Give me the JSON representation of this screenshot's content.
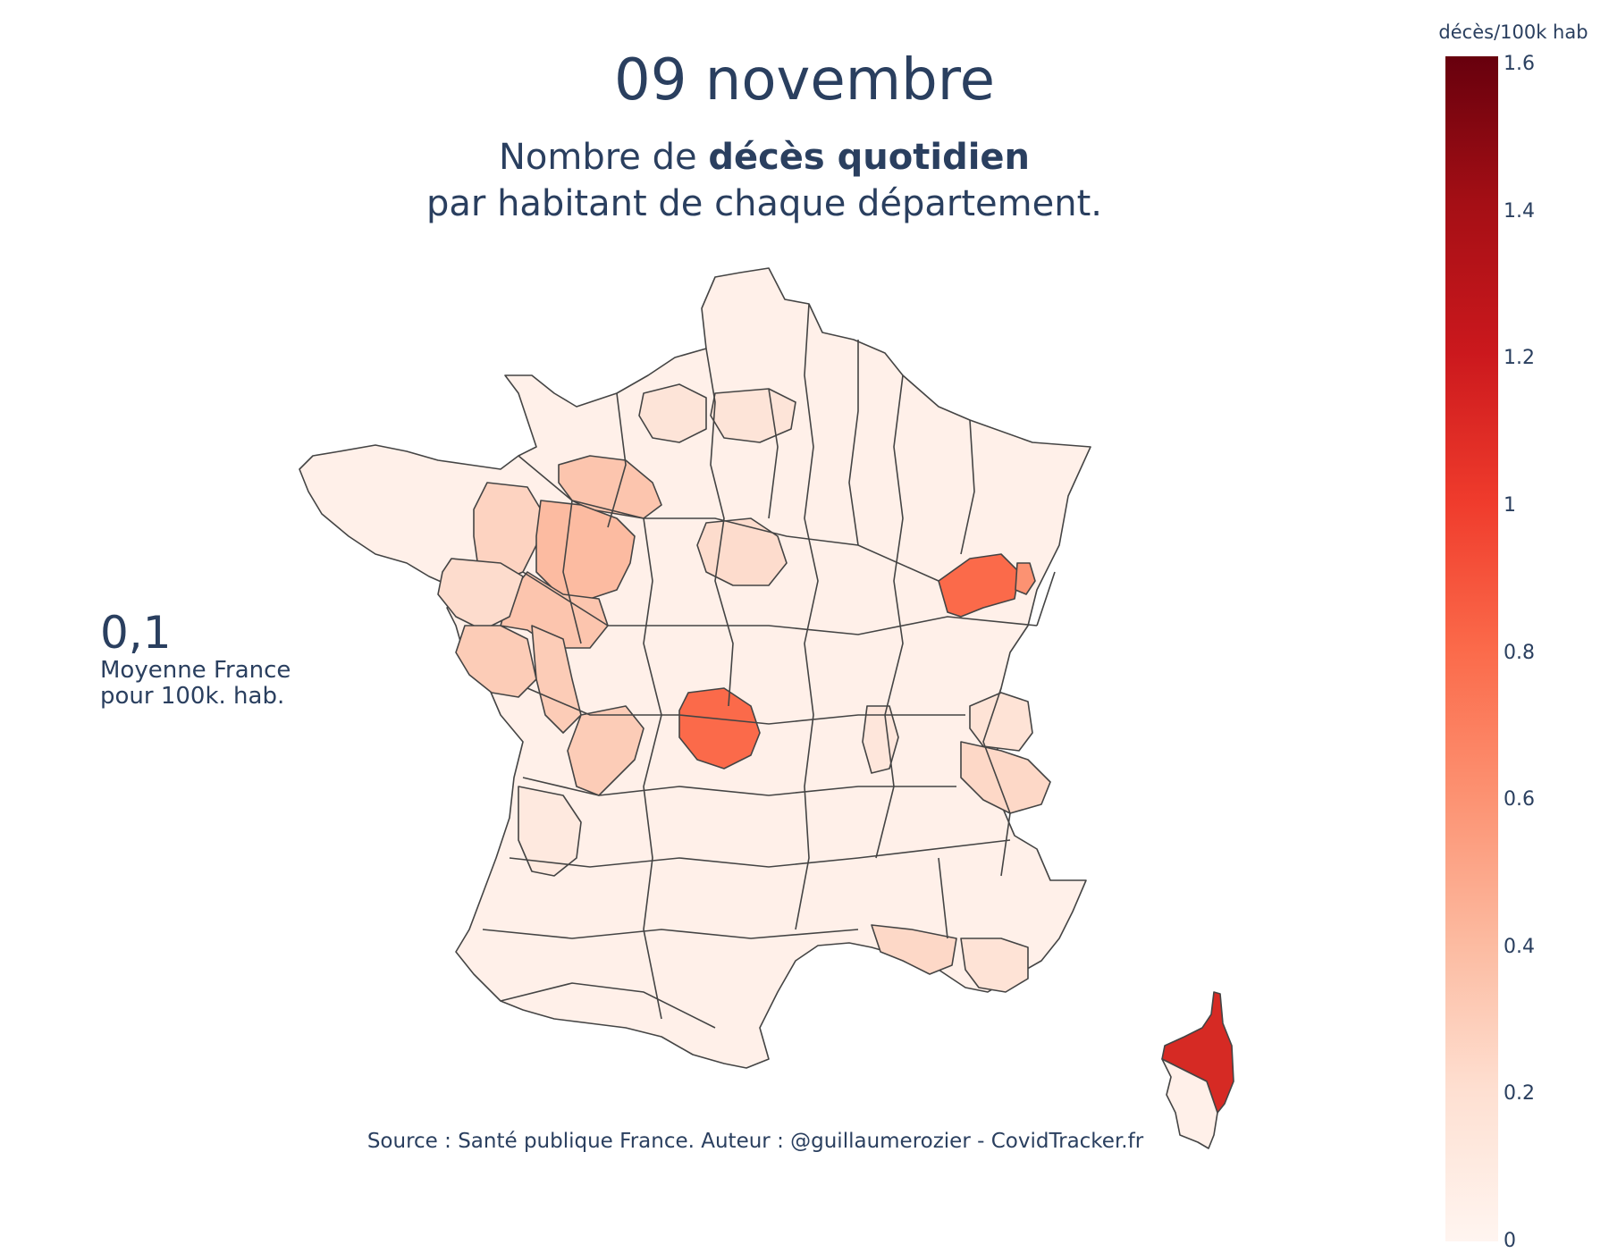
{
  "title": "09 novembre",
  "subtitle": {
    "prefix": "Nombre de ",
    "bold": "décès quotidien",
    "line2": "par habitant de chaque département."
  },
  "average": {
    "value": "0,1",
    "label_line1": "Moyenne France",
    "label_line2": "pour 100k. hab."
  },
  "source": "Source : Santé publique France. Auteur : @guillaumerozier - CovidTracker.fr",
  "colorbar": {
    "title": "décès/100k hab",
    "min": 0,
    "max": 1.6,
    "ticks": [
      "0",
      "0.2",
      "0.4",
      "0.6",
      "0.8",
      "1",
      "1.2",
      "1.4",
      "1.6"
    ],
    "colorscale": [
      "#fff5f0",
      "#fee0d2",
      "#fcbba1",
      "#fc9272",
      "#fb6a4a",
      "#ef3b2c",
      "#cb181d",
      "#a50f15",
      "#67000d"
    ]
  },
  "map": {
    "type": "choropleth",
    "region": "France – départements",
    "border_color": "#444444",
    "highlighted_departments": [
      {
        "location": "Doubs",
        "value": 0.85
      },
      {
        "location": "Territoire de Belfort",
        "value": 0.6
      },
      {
        "location": "Indre",
        "value": 0.85
      },
      {
        "location": "Haute-Corse",
        "value": 1.15
      },
      {
        "location": "Sarthe",
        "value": 0.35
      },
      {
        "location": "Orne",
        "value": 0.3
      },
      {
        "location": "Maine-et-Loire",
        "value": 0.3
      },
      {
        "location": "Deux-Sèvres",
        "value": 0.3
      },
      {
        "location": "Vienne",
        "value": 0.3
      },
      {
        "location": "Charente",
        "value": 0.3
      },
      {
        "location": "Vendée",
        "value": 0.25
      },
      {
        "location": "Mayenne",
        "value": 0.25
      },
      {
        "location": "Savoie",
        "value": 0.2
      },
      {
        "location": "Bouches-du-Rhône",
        "value": 0.2
      },
      {
        "location": "Loiret",
        "value": 0.2
      }
    ],
    "default_value": 0.05
  }
}
